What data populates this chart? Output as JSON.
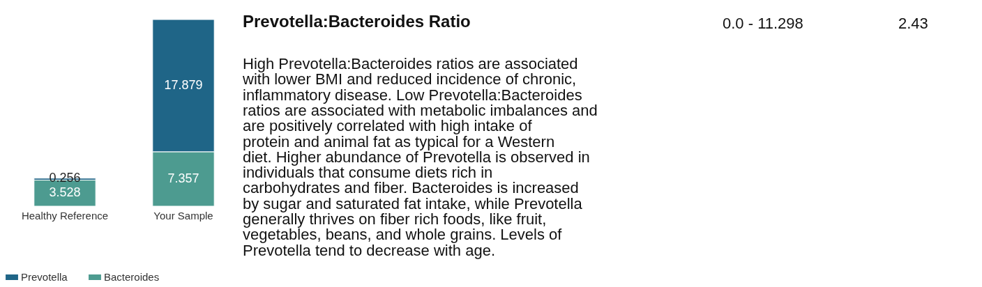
{
  "chart_data": {
    "type": "bar",
    "title": "Prevotella:Bacteroides Ratio",
    "categories": [
      "Healthy Reference",
      "Your Sample"
    ],
    "series": [
      {
        "name": "Bacteroides",
        "color": "#4d9b90",
        "values": [
          3.528,
          7.357
        ]
      },
      {
        "name": "Prevotella",
        "color": "#1f6587",
        "values": [
          0.256,
          17.879
        ]
      }
    ],
    "stacked": true,
    "data_labels": true,
    "legend": "bottom",
    "annotations": [
      "High Prevotella:Bacteroides ratios are associated with lower BMI and reduced incidence of chronic, inflammatory disease. Low Prevotella:Bacteroides ratios are associated with metabolic imbalances and are positively correlated with high intake of protein and animal fat as typical for a Western diet. Higher abundance of Prevotella is observed in individuals that consume diets rich in carbohydrates and fiber. Bacteroides is increased by sugar and saturated fat intake, while Prevotella generally thrives on fiber rich foods, like fruit, vegetables, beans, and whole grains. Levels of Prevotella tend to decrease with age.",
      "0.0 - 11.298",
      "2.43"
    ]
  }
}
